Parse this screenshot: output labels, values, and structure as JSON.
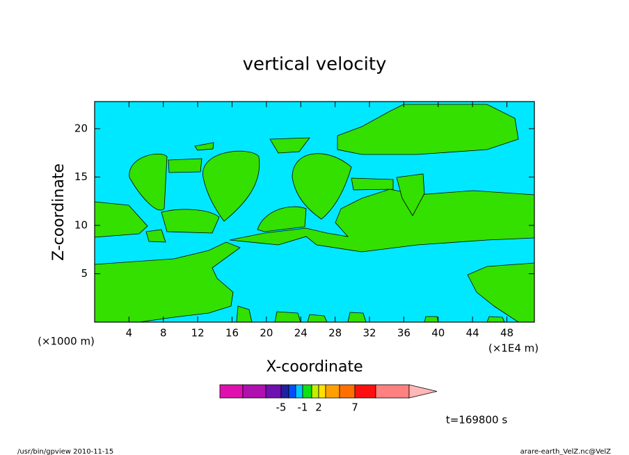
{
  "chart_data": {
    "type": "contour",
    "title": "vertical velocity",
    "xlabel": "X-coordinate",
    "ylabel": "Z-coordinate",
    "x_unit_left": "(×1000 m)",
    "x_unit_right": "(×1E4 m)",
    "xlim": [
      0,
      51.2
    ],
    "ylim": [
      0,
      22.8
    ],
    "xticks": [
      4,
      8,
      12,
      16,
      20,
      24,
      28,
      32,
      36,
      40,
      44,
      48
    ],
    "yticks": [
      5,
      10,
      15,
      20
    ],
    "fill_colors": [
      "#00e8ff",
      "#33e000"
    ],
    "colorbar": {
      "colors": [
        "#e010b0",
        "#b010b0",
        "#7010b0",
        "#2020a0",
        "#0050ff",
        "#00c8ff",
        "#10e010",
        "#c0f000",
        "#ffe000",
        "#ffa000",
        "#ff7000",
        "#ff1010",
        "#ff8080",
        "#ffb8b8"
      ],
      "ticks": [
        -5,
        -1,
        2,
        7
      ]
    },
    "annotation": "t=169800 s",
    "footer_left": "/usr/bin/gpview  2010-11-15",
    "footer_right": "arare-earth_VelZ.nc@VelZ"
  }
}
